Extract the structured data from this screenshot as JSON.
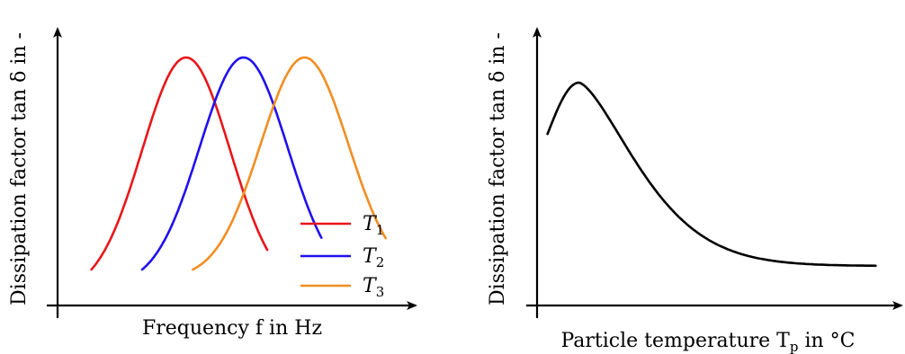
{
  "chart_data": [
    {
      "type": "line",
      "xlabel": "Frequency f in Hz",
      "ylabel": "Dissipation factor tan δ in -",
      "x_ticks": "none",
      "y_ticks": "none",
      "grid": false,
      "legend": {
        "placement": "bottom-right"
      },
      "series": [
        {
          "name": "T1",
          "color": "#e8161a",
          "shape": "gaussian-peak",
          "rise_from": 0.1,
          "peak_at": 0.38,
          "fall_to": 0.62
        },
        {
          "name": "T2",
          "color": "#1f10ee",
          "shape": "gaussian-peak",
          "rise_from": 0.25,
          "peak_at": 0.55,
          "fall_to": 0.78
        },
        {
          "name": "T3",
          "color": "#f28d21",
          "shape": "gaussian-peak",
          "rise_from": 0.4,
          "peak_at": 0.73,
          "fall_to": 0.97
        }
      ]
    },
    {
      "type": "line",
      "xlabel": "Particle temperature Tp in °C",
      "ylabel": "Dissipation factor tan δ in -",
      "x_ticks": "none",
      "y_ticks": "none",
      "grid": false,
      "series": [
        {
          "color": "#000000",
          "shape": "peak-then-decay",
          "start": 0.03,
          "peak_at": 0.12,
          "end": 0.97
        }
      ]
    }
  ],
  "labels": {
    "left_ylabel": "Dissipation factor tan δ in -",
    "left_xlabel": "Frequency f in Hz",
    "right_ylabel": "Dissipation factor tan δ in -",
    "right_xlabel_main": "Particle temperature T",
    "right_xlabel_sub": "p",
    "right_xlabel_tail": " in °C",
    "legend": [
      {
        "letter": "T",
        "sub": "1"
      },
      {
        "letter": "T",
        "sub": "2"
      },
      {
        "letter": "T",
        "sub": "3"
      }
    ]
  }
}
